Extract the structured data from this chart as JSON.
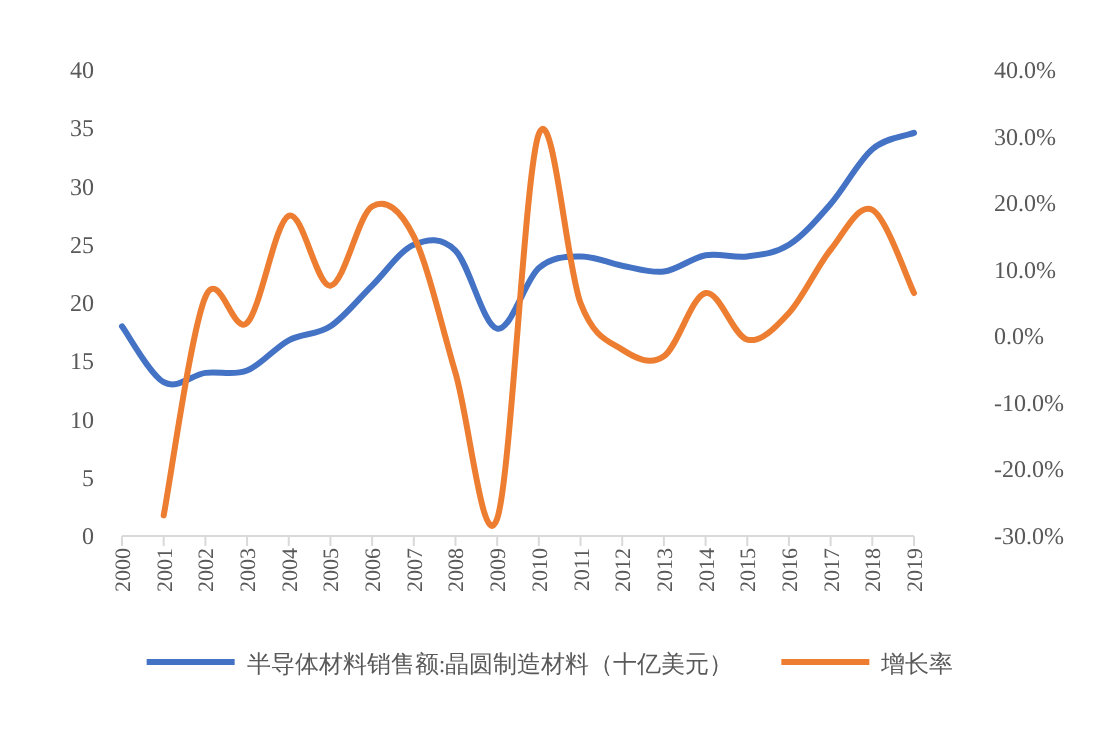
{
  "chart_data": {
    "type": "line",
    "categories": [
      "2000",
      "2001",
      "2002",
      "2003",
      "2004",
      "2005",
      "2006",
      "2007",
      "2008",
      "2009",
      "2010",
      "2011",
      "2012",
      "2013",
      "2014",
      "2015",
      "2016",
      "2017",
      "2018",
      "2019"
    ],
    "series": [
      {
        "name": "半导体材料销售额:晶圆制造材料（十亿美元）",
        "color": "#4472c4",
        "values": [
          18,
          13.2,
          14,
          14.2,
          16.8,
          18,
          21.5,
          25,
          24.5,
          17.8,
          23,
          24,
          23.2,
          22.7,
          24.1,
          24,
          25,
          28.5,
          33.2,
          34.6
        ]
      },
      {
        "name": "增长率",
        "color": "#ed7d31",
        "axis": "y2",
        "values": [
          null,
          -26.9,
          5.9,
          2,
          18.1,
          7.6,
          19.5,
          15,
          -5.5,
          -27.4,
          30.4,
          5,
          -2,
          -3,
          6.5,
          -0.5,
          3.5,
          13,
          19,
          6.5
        ]
      }
    ],
    "ylim": [
      0,
      40
    ],
    "yticks": [
      0,
      5,
      10,
      15,
      20,
      25,
      30,
      35,
      40
    ],
    "y2lim": [
      -30,
      40
    ],
    "y2ticks": [
      {
        "value": -30,
        "label": "-30.0%"
      },
      {
        "value": -20,
        "label": "-20.0%"
      },
      {
        "value": -10,
        "label": "-10.0%"
      },
      {
        "value": 0,
        "label": "0.0%"
      },
      {
        "value": 10,
        "label": "10.0%"
      },
      {
        "value": 20,
        "label": "20.0%"
      },
      {
        "value": 30,
        "label": "30.0%"
      },
      {
        "value": 40,
        "label": "40.0%"
      }
    ],
    "legend": "bottom"
  }
}
